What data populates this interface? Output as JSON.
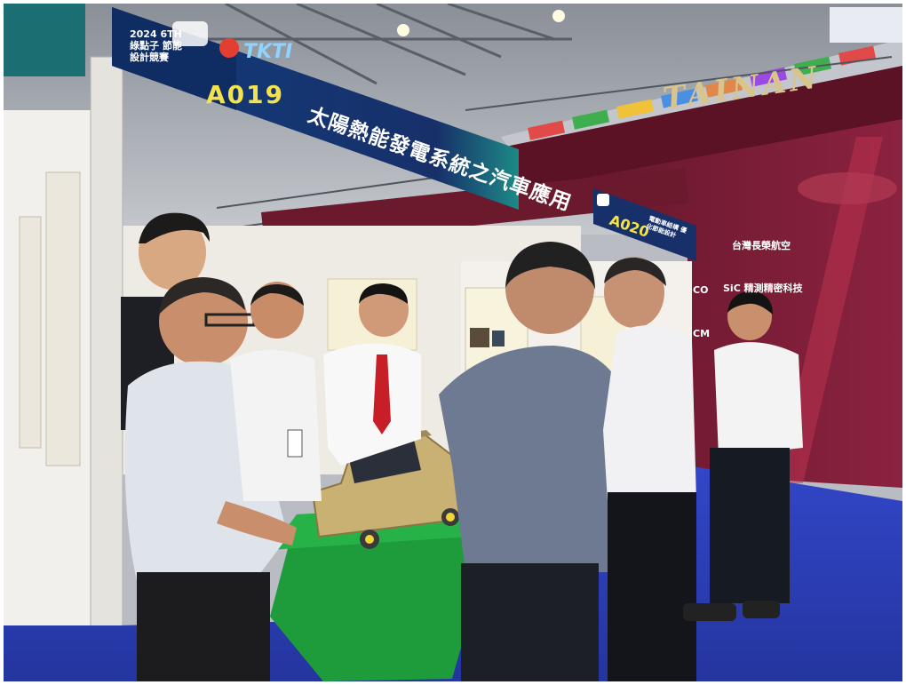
{
  "main_banner": {
    "event_text": "2024 6TH 綠點子 節能設計競賽",
    "logo_text": "TKTI",
    "booth_code": "A019",
    "project_title": "太陽熱能發電系統之汽車應用"
  },
  "side_sign": {
    "booth_code": "A020",
    "title_text": "電動車結構 優化節能設計"
  },
  "venue_banner": {
    "text": "TAINAN"
  },
  "sponsors": [
    "台灣長榮航空",
    "SiC 精測精密科技",
    "CO",
    "CM"
  ],
  "colors": {
    "banner_navy": "#16306a",
    "banner_teal": "#1f8a8a",
    "wall_maroon": "#7a1d34",
    "floor_blue": "#2b43c9",
    "table_green": "#1e9c3c",
    "car_model": "#c9b073"
  }
}
